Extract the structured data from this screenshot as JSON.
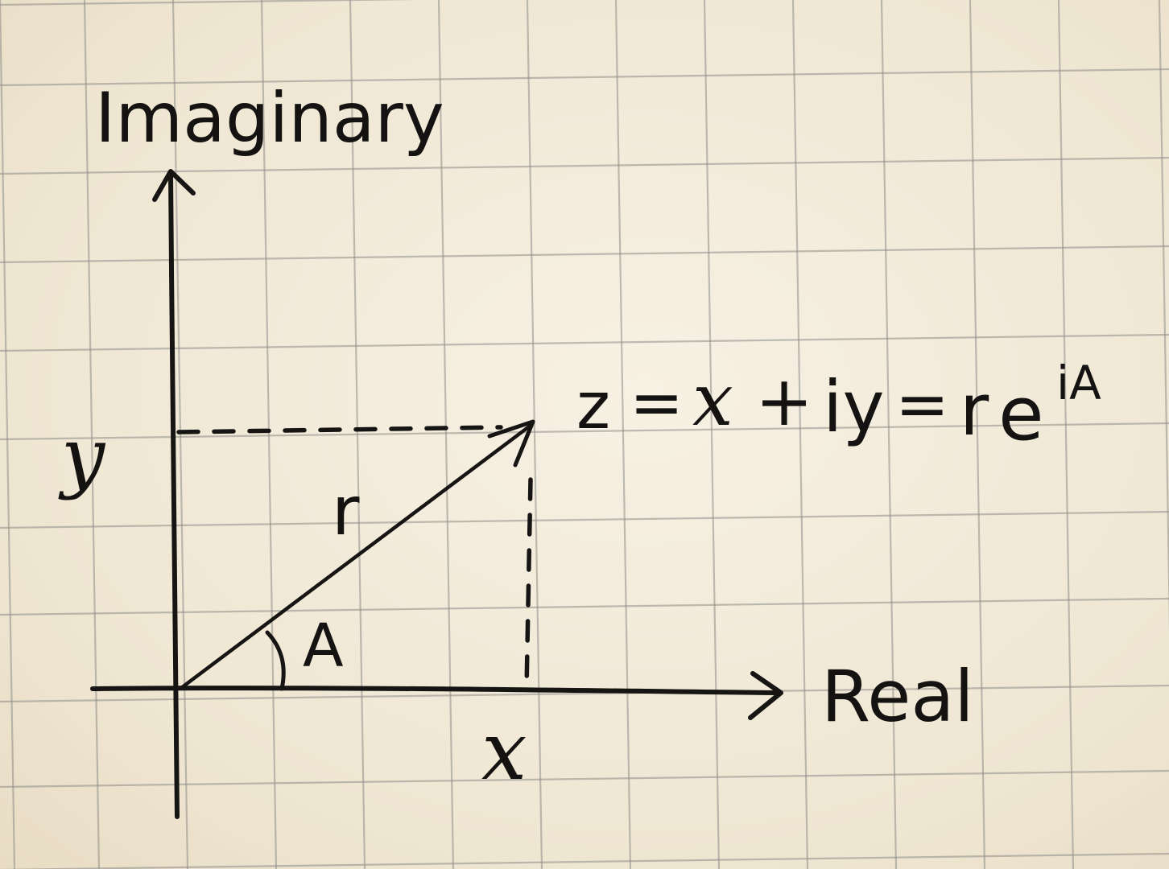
{
  "axes": {
    "imaginary_label": "Imaginary",
    "real_label": "Real"
  },
  "point": {
    "x_label": "x",
    "y_label": "y",
    "magnitude_label": "r",
    "angle_label": "A"
  },
  "equation": {
    "lhs": "z",
    "eq1": "=",
    "x_term": "x",
    "plus": "+",
    "iy_term": "iy",
    "eq2": "=",
    "r_term": "r",
    "e_term": "e",
    "exponent": "iA"
  },
  "colors": {
    "paper": "#f2ead8",
    "grid": "#8f8e8a",
    "ink": "#161513"
  }
}
